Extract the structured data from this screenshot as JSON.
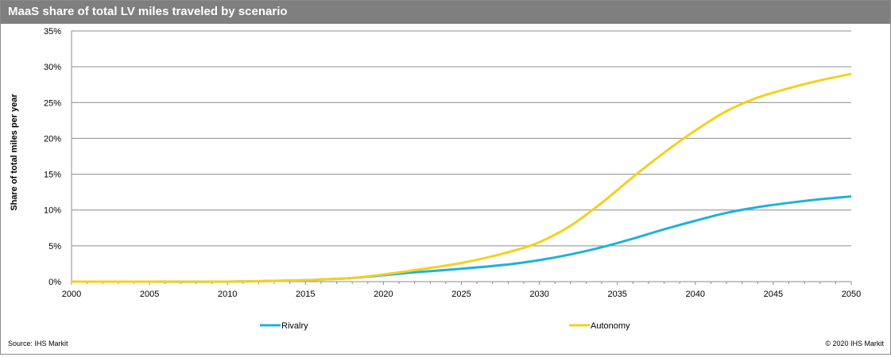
{
  "header": {
    "title": "MaaS share of total LV miles traveled by scenario"
  },
  "footer": {
    "source": "Source: IHS Markit",
    "copyright": "© 2020 IHS Markit"
  },
  "chart_data": {
    "type": "line",
    "title": "MaaS share of total LV miles traveled by scenario",
    "xlabel": "",
    "ylabel": "Share of total miles per year",
    "x": [
      2000,
      2005,
      2010,
      2015,
      2016,
      2018,
      2020,
      2022,
      2025,
      2028,
      2030,
      2032,
      2034,
      2036,
      2038,
      2040,
      2042,
      2044,
      2046,
      2048,
      2050
    ],
    "series": [
      {
        "name": "Rivalry",
        "color": "#1fb0e0",
        "values": [
          0,
          0,
          0,
          0.2,
          0.3,
          0.5,
          0.9,
          1.3,
          1.8,
          2.4,
          3.0,
          3.8,
          4.8,
          6.0,
          7.3,
          8.5,
          9.6,
          10.4,
          11.0,
          11.5,
          11.9
        ]
      },
      {
        "name": "Autonomy",
        "color": "#f5d01c",
        "values": [
          0,
          0,
          0,
          0.2,
          0.3,
          0.5,
          1.0,
          1.6,
          2.6,
          4.1,
          5.5,
          7.8,
          11.0,
          14.6,
          18.0,
          21.1,
          23.8,
          25.7,
          27.0,
          28.1,
          29.0
        ]
      }
    ],
    "xlim": [
      2000,
      2050
    ],
    "ylim": [
      0,
      35
    ],
    "xticks": [
      "2000",
      "2005",
      "2010",
      "2015",
      "2020",
      "2025",
      "2030",
      "2035",
      "2040",
      "2045",
      "2050"
    ],
    "yticks": [
      "0%",
      "5%",
      "10%",
      "15%",
      "20%",
      "25%",
      "30%",
      "35%"
    ],
    "grid": true,
    "legend_position": "bottom"
  }
}
